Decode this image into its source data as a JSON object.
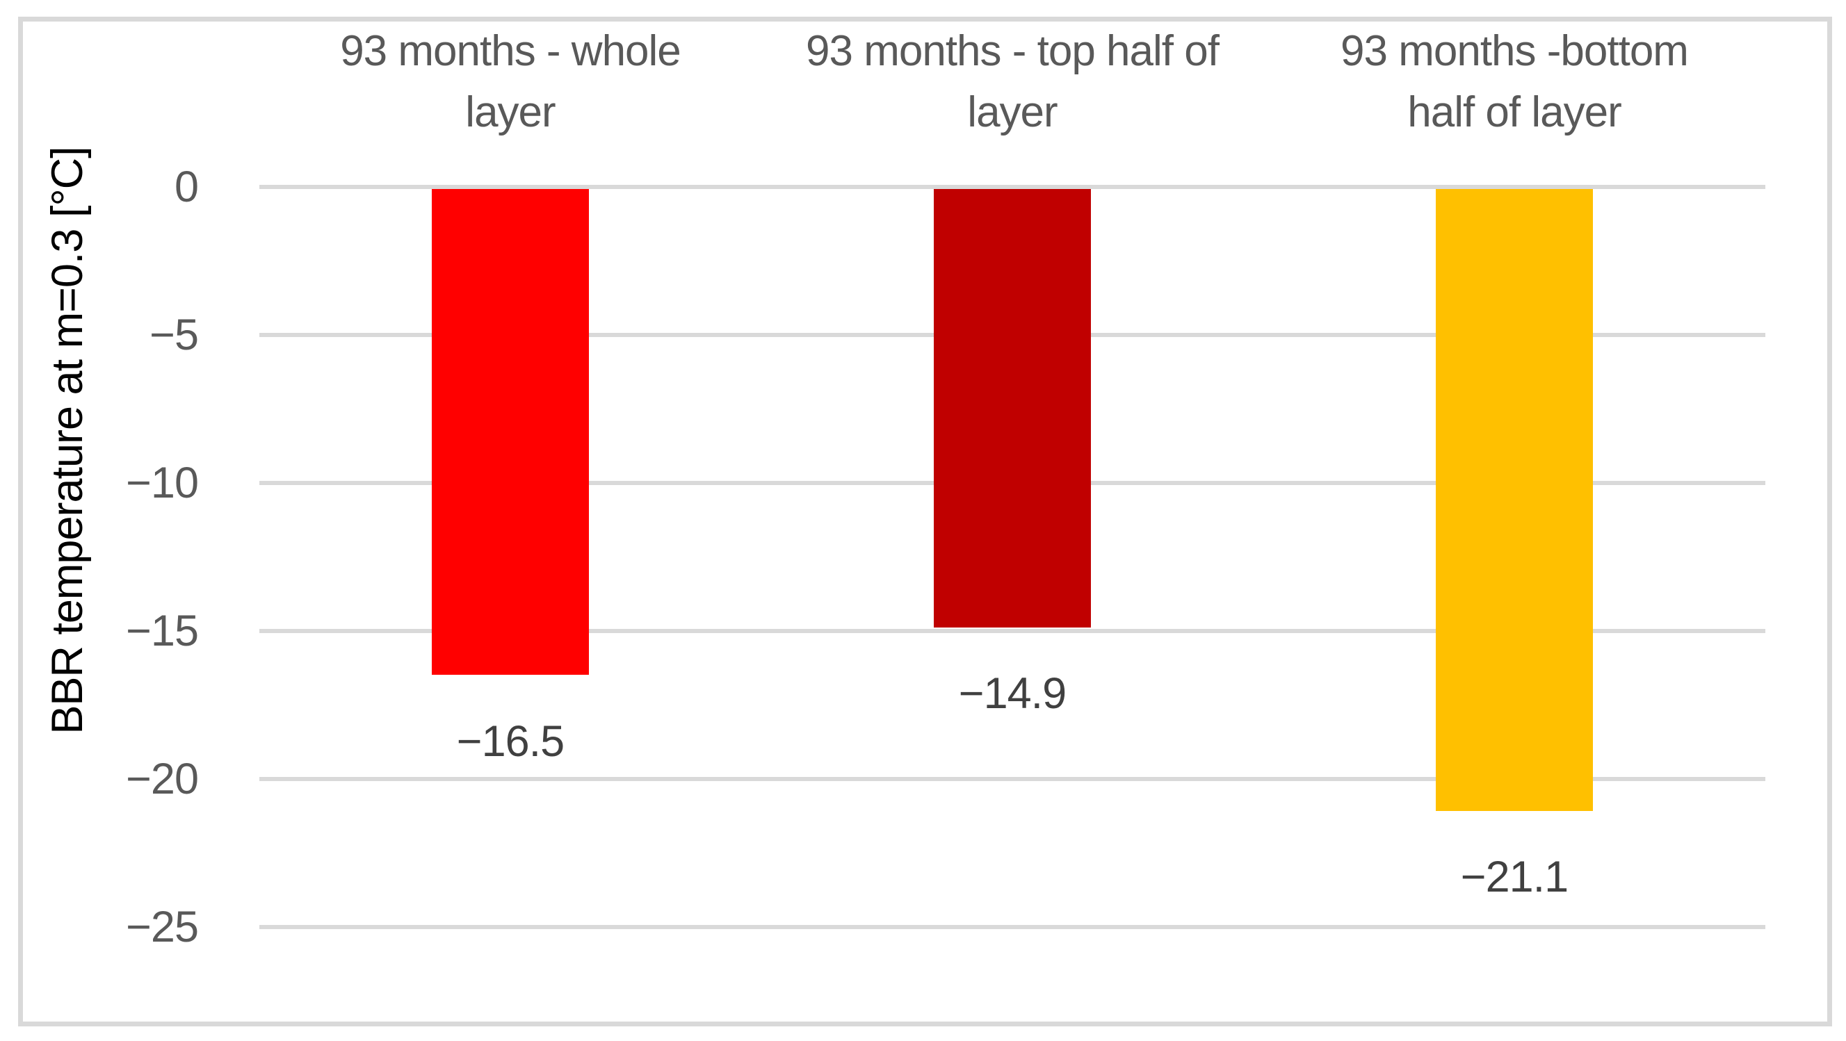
{
  "chart_data": {
    "type": "bar",
    "title": "",
    "ylabel": "BBR temperature at m=0.3 [°C]",
    "xlabel": "",
    "categories": [
      "93 months - whole layer",
      "93 months - top half of layer",
      "93 months -bottom half of layer"
    ],
    "category_label_lines": [
      [
        "93 months - whole",
        "layer"
      ],
      [
        "93 months - top half of",
        "layer"
      ],
      [
        "93 months -bottom",
        "half of layer"
      ]
    ],
    "values": [
      -16.5,
      -14.9,
      -21.1
    ],
    "value_labels": [
      "−16.5",
      "−14.9",
      "−21.1"
    ],
    "bar_colors": [
      "#FF0000",
      "#C00000",
      "#FFC000"
    ],
    "yticks": [
      0,
      -5,
      -10,
      -15,
      -20,
      -25
    ],
    "ytick_labels": [
      "0",
      "−5",
      "−10",
      "−15",
      "−20",
      "−25"
    ],
    "ylim": [
      -25,
      0
    ],
    "grid": true,
    "legend": false,
    "colors": {
      "gridline": "#D9D9D9",
      "frame_border": "#D9D9D9",
      "axis_text": "#595959",
      "data_label": "#404040",
      "background": "#FFFFFF"
    }
  }
}
